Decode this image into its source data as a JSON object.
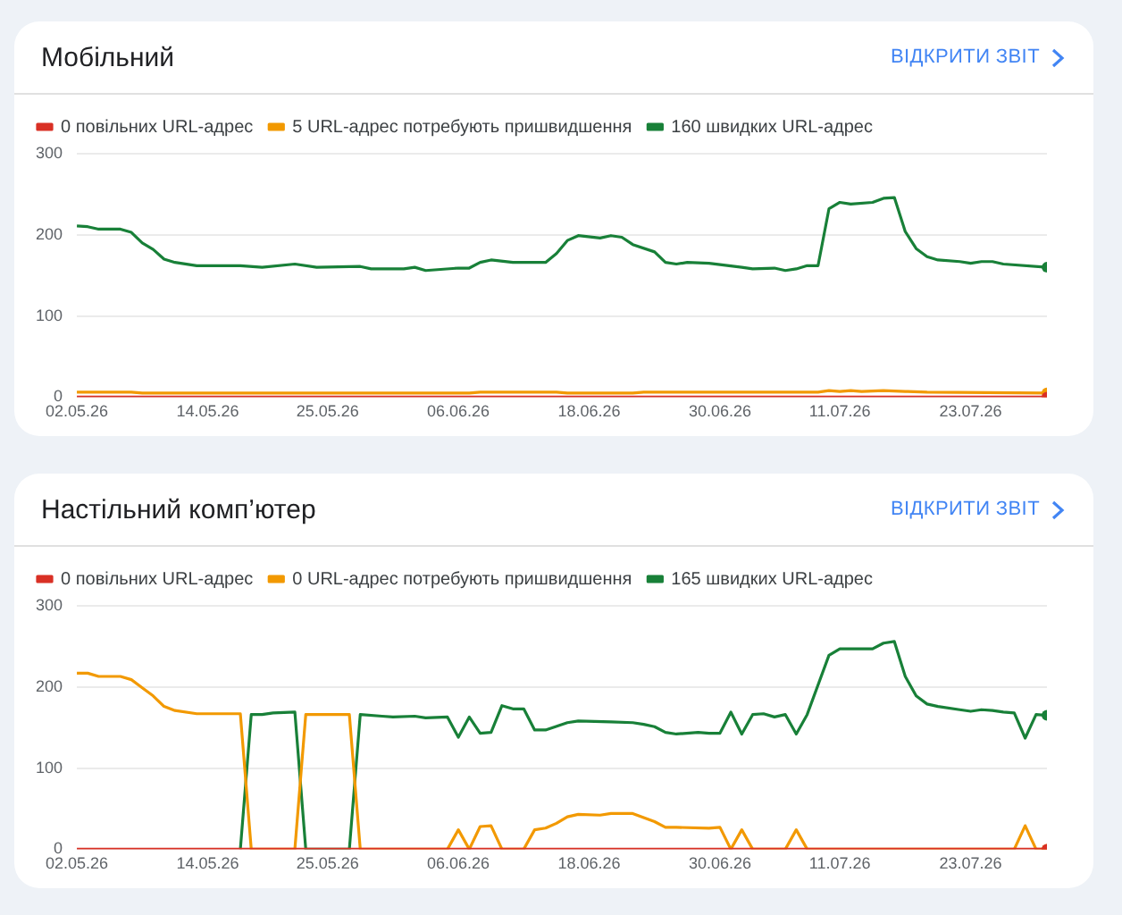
{
  "chart_data": [
    {
      "type": "line",
      "title": "Мобільний",
      "annotations": [
        "ВІДКРИТИ ЗВІТ"
      ],
      "legend": "top left",
      "grid": "y",
      "ylim": [
        0,
        300
      ],
      "yticks": [
        0,
        100,
        200,
        300
      ],
      "xlim": [
        "--05-02",
        "--07-30"
      ],
      "xticks": [
        {
          "value": "--05-02",
          "label": "02.05.26"
        },
        {
          "value": "--05-14",
          "label": "14.05.26"
        },
        {
          "value": "--05-25",
          "label": "25.05.26"
        },
        {
          "value": "--06-06",
          "label": "06.06.26"
        },
        {
          "value": "--06-18",
          "label": "18.06.26"
        },
        {
          "value": "--06-30",
          "label": "30.06.26"
        },
        {
          "value": "--07-11",
          "label": "11.07.26"
        },
        {
          "value": "--07-23",
          "label": "23.07.26"
        }
      ],
      "series": [
        {
          "name": "0 повільних URL-адрес",
          "color": "#d93025",
          "x": [
            "--05-02",
            "--07-30"
          ],
          "values": [
            0,
            0
          ]
        },
        {
          "name": "5 URL-адрес потребують пришвидшення",
          "color": "#f29900",
          "x": [
            "--05-02",
            "--05-07",
            "--05-08",
            "--06-07",
            "--06-08",
            "--06-15",
            "--06-16",
            "--06-22",
            "--06-23",
            "--07-09",
            "--07-10",
            "--07-11",
            "--07-12",
            "--07-13",
            "--07-15",
            "--07-17",
            "--07-19",
            "--07-30"
          ],
          "values": [
            6,
            6,
            5,
            5,
            6,
            6,
            5,
            5,
            6,
            6,
            8,
            7,
            8,
            7,
            8,
            7,
            6,
            5
          ]
        },
        {
          "name": "160 швидких URL-адрес",
          "color": "#188038",
          "x": [
            "--05-02",
            "--05-03",
            "--05-04",
            "--05-06",
            "--05-07",
            "--05-08",
            "--05-09",
            "--05-10",
            "--05-11",
            "--05-13",
            "--05-17",
            "--05-19",
            "--05-22",
            "--05-24",
            "--05-28",
            "--05-29",
            "--06-01",
            "--06-02",
            "--06-03",
            "--06-06",
            "--06-07",
            "--06-08",
            "--06-09",
            "--06-11",
            "--06-14",
            "--06-15",
            "--06-16",
            "--06-17",
            "--06-19",
            "--06-20",
            "--06-21",
            "--06-22",
            "--06-24",
            "--06-25",
            "--06-26",
            "--06-27",
            "--06-29",
            "--07-02",
            "--07-03",
            "--07-05",
            "--07-06",
            "--07-07",
            "--07-08",
            "--07-09",
            "--07-10",
            "--07-11",
            "--07-12",
            "--07-14",
            "--07-15",
            "--07-16",
            "--07-17",
            "--07-18",
            "--07-19",
            "--07-20",
            "--07-22",
            "--07-23",
            "--07-24",
            "--07-25",
            "--07-26",
            "--07-30"
          ],
          "values": [
            211,
            210,
            207,
            207,
            203,
            190,
            182,
            170,
            166,
            162,
            162,
            160,
            164,
            160,
            161,
            158,
            158,
            160,
            156,
            159,
            159,
            166,
            169,
            166,
            166,
            177,
            193,
            199,
            196,
            199,
            197,
            188,
            179,
            166,
            164,
            166,
            165,
            160,
            158,
            159,
            156,
            158,
            162,
            162,
            232,
            240,
            238,
            240,
            245,
            246,
            204,
            183,
            173,
            169,
            167,
            165,
            167,
            167,
            164,
            160
          ]
        }
      ]
    },
    {
      "type": "line",
      "title": "Настільний комп’ютер",
      "annotations": [
        "ВІДКРИТИ ЗВІТ"
      ],
      "legend": "top left",
      "grid": "y",
      "ylim": [
        0,
        300
      ],
      "yticks": [
        0,
        100,
        200,
        300
      ],
      "xlim": [
        "--05-02",
        "--07-30"
      ],
      "xticks": [
        {
          "value": "--05-02",
          "label": "02.05.26"
        },
        {
          "value": "--05-14",
          "label": "14.05.26"
        },
        {
          "value": "--05-25",
          "label": "25.05.26"
        },
        {
          "value": "--06-06",
          "label": "06.06.26"
        },
        {
          "value": "--06-18",
          "label": "18.06.26"
        },
        {
          "value": "--06-30",
          "label": "30.06.26"
        },
        {
          "value": "--07-11",
          "label": "11.07.26"
        },
        {
          "value": "--07-23",
          "label": "23.07.26"
        }
      ],
      "series": [
        {
          "name": "0 повільних URL-адрес",
          "color": "#d93025",
          "x": [
            "--05-02",
            "--07-30"
          ],
          "values": [
            0,
            0
          ]
        },
        {
          "name": "0 URL-адрес потребують пришвидшення",
          "color": "#f29900",
          "x": [
            "--05-02",
            "--05-03",
            "--05-04",
            "--05-06",
            "--05-07",
            "--05-08",
            "--05-09",
            "--05-10",
            "--05-11",
            "--05-13",
            "--05-17",
            "--05-18",
            "--05-22",
            "--05-23",
            "--05-27",
            "--05-28",
            "--06-05",
            "--06-06",
            "--06-07",
            "--06-08",
            "--06-09",
            "--06-10",
            "--06-12",
            "--06-13",
            "--06-14",
            "--06-15",
            "--06-16",
            "--06-17",
            "--06-19",
            "--06-20",
            "--06-22",
            "--06-23",
            "--06-24",
            "--06-25",
            "--06-26",
            "--06-29",
            "--06-30",
            "--07-01",
            "--07-02",
            "--07-03",
            "--07-06",
            "--07-07",
            "--07-08",
            "--07-27",
            "--07-28",
            "--07-29",
            "--07-30"
          ],
          "values": [
            217,
            217,
            213,
            213,
            209,
            199,
            189,
            176,
            171,
            167,
            167,
            0,
            0,
            166,
            166,
            0,
            0,
            24,
            0,
            28,
            29,
            0,
            0,
            24,
            26,
            32,
            40,
            43,
            42,
            44,
            44,
            39,
            34,
            27,
            27,
            26,
            27,
            0,
            24,
            0,
            0,
            24,
            0,
            0,
            29,
            0,
            0
          ]
        },
        {
          "name": "165 швидких URL-адрес",
          "color": "#188038",
          "x": [
            "--05-17",
            "--05-18",
            "--05-19",
            "--05-20",
            "--05-22",
            "--05-23",
            "--05-27",
            "--05-28",
            "--05-30",
            "--05-31",
            "--06-02",
            "--06-03",
            "--06-05",
            "--06-06",
            "--06-07",
            "--06-08",
            "--06-09",
            "--06-10",
            "--06-11",
            "--06-12",
            "--06-13",
            "--06-14",
            "--06-16",
            "--06-17",
            "--06-20",
            "--06-22",
            "--06-23",
            "--06-24",
            "--06-25",
            "--06-26",
            "--06-28",
            "--06-29",
            "--06-30",
            "--07-01",
            "--07-02",
            "--07-03",
            "--07-04",
            "--07-05",
            "--07-06",
            "--07-07",
            "--07-08",
            "--07-10",
            "--07-11",
            "--07-12",
            "--07-14",
            "--07-15",
            "--07-16",
            "--07-17",
            "--07-18",
            "--07-19",
            "--07-20",
            "--07-22",
            "--07-23",
            "--07-24",
            "--07-25",
            "--07-26",
            "--07-27",
            "--07-28",
            "--07-29",
            "--07-30"
          ],
          "values": [
            0,
            166,
            166,
            168,
            169,
            0,
            0,
            166,
            164,
            163,
            164,
            162,
            163,
            138,
            163,
            143,
            144,
            177,
            173,
            173,
            147,
            147,
            156,
            158,
            157,
            156,
            154,
            151,
            144,
            142,
            144,
            143,
            143,
            169,
            142,
            166,
            167,
            163,
            166,
            142,
            166,
            239,
            247,
            247,
            247,
            254,
            256,
            213,
            189,
            179,
            176,
            172,
            170,
            172,
            171,
            169,
            168,
            137,
            166,
            165
          ]
        }
      ]
    }
  ]
}
